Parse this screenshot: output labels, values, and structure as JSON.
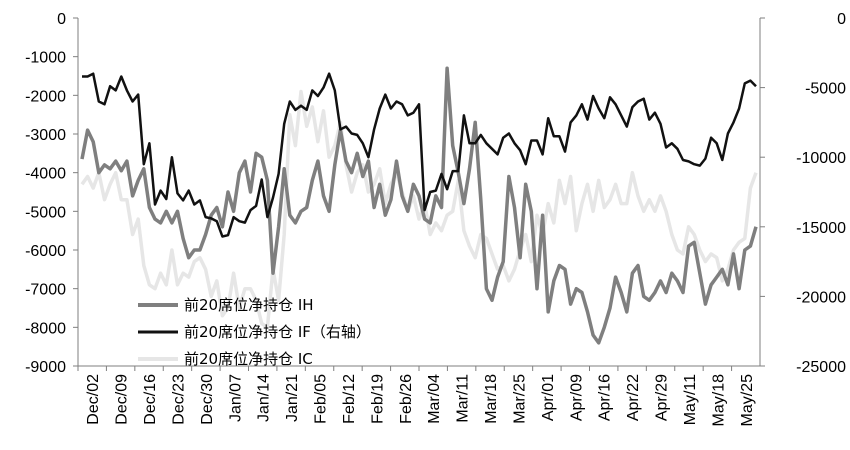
{
  "chart_data": {
    "type": "line",
    "title": "",
    "xlabel": "",
    "ylabel": "",
    "ylim_left": [
      -9000,
      0
    ],
    "ylim_right": [
      -25000,
      0
    ],
    "yticks_left": [
      "0",
      "-1000",
      "-2000",
      "-3000",
      "-4000",
      "-5000",
      "-6000",
      "-7000",
      "-8000",
      "-9000"
    ],
    "yticks_right": [
      "0",
      "-5000",
      "-10000",
      "-15000",
      "-20000",
      "-25000"
    ],
    "x_labels": [
      "Dec/02",
      "Dec/09",
      "Dec/16",
      "Dec/23",
      "Dec/30",
      "Jan/07",
      "Jan/14",
      "Jan/21",
      "Feb/05",
      "Feb/12",
      "Feb/19",
      "Feb/26",
      "Mar/04",
      "Mar/11",
      "Mar/18",
      "Mar/25",
      "Apr/01",
      "Apr/09",
      "Apr/16",
      "Apr/22",
      "Apr/29",
      "May/11",
      "May/18",
      "May/25"
    ],
    "grid": false,
    "legend_position": "bottom-left",
    "series": [
      {
        "name": "前20席位净持仓 IH",
        "axis": "left",
        "color": "#7f7f7f",
        "values": [
          -3650,
          -2900,
          -3200,
          -4000,
          -3800,
          -3900,
          -3700,
          -3950,
          -3700,
          -4600,
          -4200,
          -3900,
          -4900,
          -5200,
          -5300,
          -5000,
          -5300,
          -5000,
          -5700,
          -6200,
          -6000,
          -6000,
          -5600,
          -5100,
          -4900,
          -5400,
          -4500,
          -5000,
          -4000,
          -3700,
          -4500,
          -3500,
          -3600,
          -4200,
          -6600,
          -5400,
          -3900,
          -5100,
          -5300,
          -5000,
          -4900,
          -4200,
          -3700,
          -4600,
          -5000,
          -3800,
          -2900,
          -3700,
          -4000,
          -3500,
          -4100,
          -3700,
          -4900,
          -4300,
          -5100,
          -4700,
          -3700,
          -4600,
          -5000,
          -4300,
          -4600,
          -5200,
          -5300,
          -4600,
          -4900,
          -1300,
          -3300,
          -4000,
          -4800,
          -3900,
          -2700,
          -4700,
          -7000,
          -7300,
          -6700,
          -6300,
          -4100,
          -4900,
          -6200,
          -4300,
          -5000,
          -7000,
          -5100,
          -7600,
          -6800,
          -6400,
          -6500,
          -7400,
          -7000,
          -7100,
          -7600,
          -8200,
          -8400,
          -8000,
          -7500,
          -6700,
          -7100,
          -7600,
          -6600,
          -6400,
          -7200,
          -7300,
          -7100,
          -6800,
          -7100,
          -6600,
          -6800,
          -7100,
          -5900,
          -5800,
          -6600,
          -7400,
          -6900,
          -6700,
          -6500,
          -6900,
          -6100,
          -7000,
          -6000,
          -5900,
          -5400
        ]
      },
      {
        "name": "前20席位净持仓 IF（右轴）",
        "axis": "right",
        "color": "#111111",
        "values": [
          -4200,
          -4200,
          -4000,
          -6000,
          -6200,
          -4900,
          -5200,
          -4200,
          -5200,
          -6000,
          -5500,
          -10500,
          -9000,
          -13400,
          -12400,
          -13000,
          -10000,
          -12600,
          -13100,
          -12400,
          -13400,
          -13100,
          -14300,
          -14400,
          -14600,
          -15700,
          -15600,
          -14300,
          -14600,
          -14700,
          -13800,
          -13500,
          -11600,
          -14300,
          -12900,
          -11200,
          -7600,
          -6000,
          -6600,
          -6300,
          -6600,
          -5200,
          -5600,
          -5000,
          -4000,
          -5200,
          -8000,
          -7800,
          -8300,
          -8400,
          -9000,
          -10000,
          -8000,
          -6500,
          -5500,
          -6500,
          -6000,
          -6200,
          -7000,
          -6800,
          -6200,
          -13800,
          -12500,
          -12400,
          -11200,
          -12300,
          -11000,
          -11000,
          -7000,
          -9000,
          -9000,
          -8400,
          -9000,
          -9400,
          -9800,
          -8600,
          -8300,
          -9000,
          -9500,
          -10500,
          -8800,
          -8800,
          -9800,
          -7200,
          -8500,
          -8500,
          -9600,
          -7500,
          -7000,
          -6200,
          -7300,
          -5600,
          -6500,
          -7200,
          -5700,
          -6200,
          -7000,
          -7800,
          -6400,
          -6000,
          -5800,
          -7300,
          -6800,
          -7600,
          -9300,
          -9000,
          -9400,
          -10200,
          -10300,
          -10500,
          -10600,
          -10100,
          -8600,
          -9000,
          -10200,
          -8300,
          -7500,
          -6500,
          -4700,
          -4500,
          -4900
        ]
      },
      {
        "name": "前20席位净持仓 IC",
        "axis": "left",
        "color": "#e6e6e6",
        "values": [
          -4300,
          -4100,
          -4400,
          -4000,
          -4700,
          -4300,
          -4000,
          -4700,
          -4700,
          -5600,
          -5200,
          -6400,
          -6900,
          -7000,
          -6600,
          -6900,
          -6000,
          -6900,
          -6600,
          -6700,
          -6300,
          -6200,
          -6500,
          -7200,
          -6800,
          -7700,
          -7500,
          -6600,
          -7500,
          -7000,
          -7000,
          -7300,
          -7900,
          -8000,
          -6500,
          -7300,
          -5600,
          -2500,
          -3300,
          -1900,
          -2800,
          -2300,
          -3200,
          -2400,
          -3600,
          -3300,
          -2700,
          -3800,
          -4500,
          -4000,
          -3800,
          -4500,
          -4300,
          -3900,
          -4800,
          -4300,
          -4000,
          -4500,
          -5000,
          -4600,
          -5200,
          -4800,
          -5600,
          -5300,
          -5500,
          -5100,
          -5000,
          -4200,
          -5500,
          -5900,
          -6200,
          -5600,
          -5700,
          -6100,
          -6500,
          -6400,
          -6800,
          -6500,
          -6000,
          -5600,
          -6300,
          -5100,
          -5600,
          -4800,
          -5300,
          -4200,
          -4800,
          -4100,
          -5500,
          -4800,
          -4300,
          -5000,
          -4200,
          -4900,
          -4700,
          -4300,
          -4800,
          -4800,
          -4000,
          -4600,
          -5000,
          -4700,
          -5000,
          -4600,
          -5000,
          -5600,
          -6000,
          -6100,
          -5400,
          -5600,
          -6000,
          -6300,
          -6100,
          -6200,
          -6800,
          -6500,
          -6000,
          -5800,
          -5700,
          -4400,
          -4000
        ]
      }
    ]
  }
}
